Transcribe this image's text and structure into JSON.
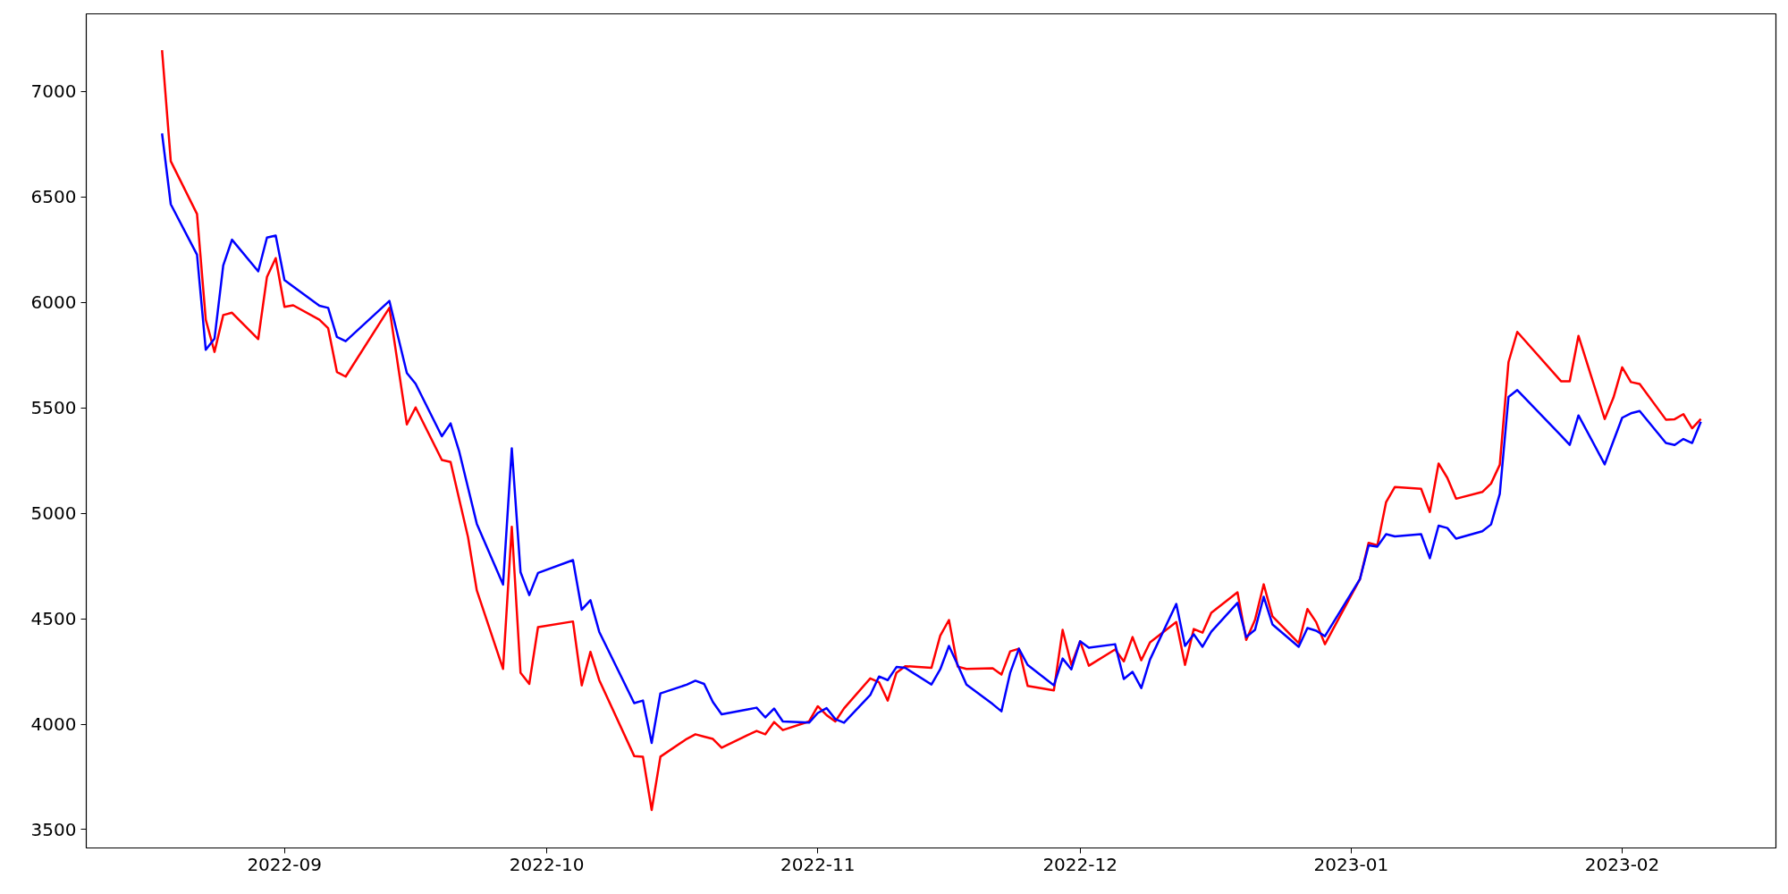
{
  "chart_data": {
    "type": "line",
    "x": [
      "2022-08-18",
      "2022-08-19",
      "2022-08-22",
      "2022-08-23",
      "2022-08-24",
      "2022-08-25",
      "2022-08-26",
      "2022-08-29",
      "2022-08-30",
      "2022-08-31",
      "2022-09-01",
      "2022-09-02",
      "2022-09-05",
      "2022-09-06",
      "2022-09-07",
      "2022-09-08",
      "2022-09-13",
      "2022-09-15",
      "2022-09-16",
      "2022-09-19",
      "2022-09-20",
      "2022-09-21",
      "2022-09-22",
      "2022-09-23",
      "2022-09-26",
      "2022-09-27",
      "2022-09-28",
      "2022-09-29",
      "2022-09-30",
      "2022-10-04",
      "2022-10-05",
      "2022-10-06",
      "2022-10-07",
      "2022-10-11",
      "2022-10-12",
      "2022-10-13",
      "2022-10-14",
      "2022-10-17",
      "2022-10-18",
      "2022-10-19",
      "2022-10-20",
      "2022-10-21",
      "2022-10-24",
      "2022-10-25",
      "2022-10-26",
      "2022-10-27",
      "2022-10-28",
      "2022-10-31",
      "2022-11-01",
      "2022-11-02",
      "2022-11-03",
      "2022-11-04",
      "2022-11-07",
      "2022-11-08",
      "2022-11-09",
      "2022-11-10",
      "2022-11-11",
      "2022-11-14",
      "2022-11-15",
      "2022-11-16",
      "2022-11-17",
      "2022-11-18",
      "2022-11-21",
      "2022-11-22",
      "2022-11-23",
      "2022-11-24",
      "2022-11-25",
      "2022-11-28",
      "2022-11-29",
      "2022-11-30",
      "2022-12-01",
      "2022-12-02",
      "2022-12-05",
      "2022-12-06",
      "2022-12-07",
      "2022-12-08",
      "2022-12-09",
      "2022-12-12",
      "2022-12-13",
      "2022-12-14",
      "2022-12-15",
      "2022-12-16",
      "2022-12-19",
      "2022-12-20",
      "2022-12-21",
      "2022-12-22",
      "2022-12-23",
      "2022-12-26",
      "2022-12-27",
      "2022-12-28",
      "2022-12-29",
      "2023-01-02",
      "2023-01-03",
      "2023-01-04",
      "2023-01-05",
      "2023-01-06",
      "2023-01-09",
      "2023-01-10",
      "2023-01-11",
      "2023-01-12",
      "2023-01-13",
      "2023-01-16",
      "2023-01-17",
      "2023-01-18",
      "2023-01-19",
      "2023-01-20",
      "2023-01-25",
      "2023-01-26",
      "2023-01-27",
      "2023-01-30",
      "2023-01-31",
      "2023-02-01",
      "2023-02-02",
      "2023-02-03",
      "2023-02-06",
      "2023-02-07",
      "2023-02-08",
      "2023-02-09",
      "2023-02-10"
    ],
    "series": [
      {
        "color": "#ff0000",
        "values": [
          7196,
          6669,
          6419,
          5918,
          5765,
          5940,
          5951,
          5826,
          6121,
          6210,
          5979,
          5986,
          5918,
          5877,
          5670,
          5648,
          5974,
          5421,
          5502,
          5253,
          5243,
          5064,
          4886,
          4634,
          4262,
          4936,
          4244,
          4191,
          4460,
          4487,
          4184,
          4343,
          4209,
          3849,
          3845,
          3593,
          3846,
          3930,
          3952,
          3941,
          3930,
          3888,
          3949,
          3968,
          3952,
          4010,
          3972,
          4013,
          4085,
          4043,
          4013,
          4075,
          4217,
          4199,
          4112,
          4244,
          4275,
          4267,
          4419,
          4494,
          4273,
          4262,
          4265,
          4235,
          4345,
          4358,
          4181,
          4160,
          4447,
          4281,
          4393,
          4277,
          4354,
          4298,
          4413,
          4303,
          4388,
          4484,
          4281,
          4451,
          4434,
          4528,
          4625,
          4400,
          4494,
          4663,
          4511,
          4384,
          4546,
          4484,
          4379,
          4687,
          4860,
          4848,
          5053,
          5125,
          5116,
          5006,
          5236,
          5168,
          5069,
          5101,
          5141,
          5230,
          5717,
          5860,
          5626,
          5626,
          5841,
          5447,
          5548,
          5692,
          5622,
          5613,
          5444,
          5446,
          5470,
          5403,
          5447
        ]
      },
      {
        "color": "#0000ff",
        "values": [
          6801,
          6465,
          6226,
          5775,
          5828,
          6175,
          6297,
          6147,
          6307,
          6317,
          6106,
          6075,
          5984,
          5974,
          5836,
          5816,
          6007,
          5665,
          5614,
          5365,
          5426,
          5291,
          5120,
          4950,
          4662,
          5308,
          4721,
          4612,
          4717,
          4778,
          4543,
          4588,
          4438,
          4100,
          4112,
          3911,
          4146,
          4187,
          4206,
          4191,
          4105,
          4047,
          4070,
          4078,
          4032,
          4074,
          4013,
          4007,
          4053,
          4076,
          4024,
          4007,
          4138,
          4226,
          4209,
          4271,
          4267,
          4188,
          4260,
          4371,
          4281,
          4188,
          4095,
          4061,
          4243,
          4358,
          4281,
          4184,
          4311,
          4260,
          4393,
          4363,
          4379,
          4214,
          4248,
          4171,
          4307,
          4570,
          4371,
          4426,
          4367,
          4438,
          4575,
          4413,
          4447,
          4604,
          4473,
          4367,
          4456,
          4443,
          4417,
          4687,
          4848,
          4842,
          4901,
          4890,
          4901,
          4787,
          4941,
          4930,
          4880,
          4915,
          4947,
          5092,
          5552,
          5584,
          5369,
          5324,
          5464,
          5232,
          5343,
          5453,
          5474,
          5485,
          5333,
          5324,
          5352,
          5333,
          5434
        ]
      }
    ],
    "xlim": [
      "2022-08-09T08:00",
      "2023-02-18T14:00"
    ],
    "xticks": [
      {
        "value": "2022-09-01",
        "label": "2022-09"
      },
      {
        "value": "2022-10-01",
        "label": "2022-10"
      },
      {
        "value": "2022-11-01",
        "label": "2022-11"
      },
      {
        "value": "2022-12-01",
        "label": "2022-12"
      },
      {
        "value": "2023-01-01",
        "label": "2023-01"
      },
      {
        "value": "2023-02-01",
        "label": "2023-02"
      }
    ],
    "ylim": [
      3413,
      7368
    ],
    "yticks": [
      3500,
      4000,
      4500,
      5000,
      5500,
      6000,
      6500,
      7000
    ],
    "line_style": "solid"
  }
}
